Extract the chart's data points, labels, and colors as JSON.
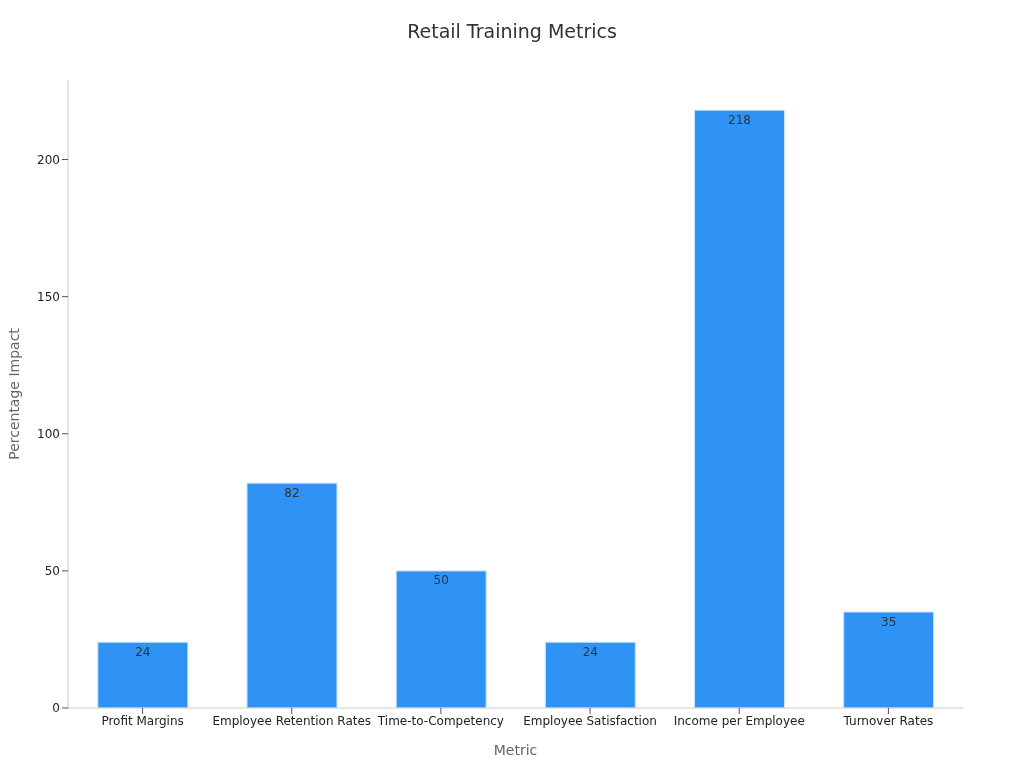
{
  "chart_data": {
    "type": "bar",
    "title": "Retail Training Metrics",
    "xlabel": "Metric",
    "ylabel": "Percentage Impact",
    "categories": [
      "Profit Margins",
      "Employee Retention Rates",
      "Time-to-Competency",
      "Employee Satisfaction",
      "Income per Employee",
      "Turnover Rates"
    ],
    "values": [
      24,
      82,
      50,
      24,
      218,
      35
    ],
    "color": "#2e93f5",
    "ylim": [
      0,
      229
    ],
    "yticks": [
      0,
      50,
      100,
      150,
      200
    ],
    "grid": false,
    "data_labels": true
  }
}
